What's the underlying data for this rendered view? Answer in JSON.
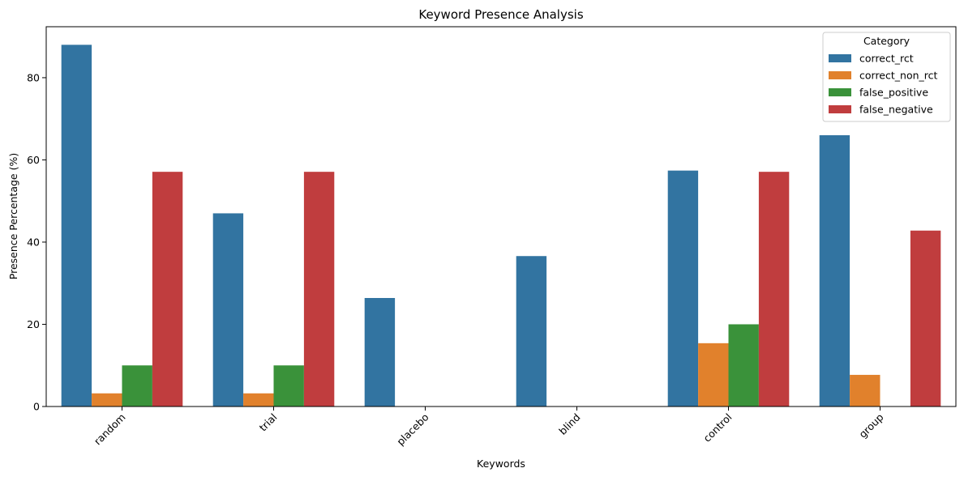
{
  "chart_data": {
    "type": "bar",
    "title": "Keyword Presence Analysis",
    "xlabel": "Keywords",
    "ylabel": "Presence Percentage (%)",
    "categories": [
      "random",
      "trial",
      "placebo",
      "blind",
      "control",
      "group"
    ],
    "series": [
      {
        "name": "correct_rct",
        "color": "#3274a1",
        "values": [
          88.0,
          47.0,
          26.4,
          36.6,
          57.4,
          66.0
        ]
      },
      {
        "name": "correct_non_rct",
        "color": "#e1812c",
        "values": [
          3.2,
          3.2,
          0,
          0,
          15.4,
          7.7
        ]
      },
      {
        "name": "false_positive",
        "color": "#3a923a",
        "values": [
          10.0,
          10.0,
          0,
          0,
          20.0,
          0
        ]
      },
      {
        "name": "false_negative",
        "color": "#c03d3e",
        "values": [
          57.1,
          57.1,
          0,
          0,
          57.1,
          42.8
        ]
      }
    ],
    "ylim": [
      0,
      92.4
    ],
    "yticks": [
      0,
      20,
      40,
      60,
      80
    ],
    "legend": {
      "title": "Category",
      "placement": "top-right"
    },
    "grid": false
  }
}
